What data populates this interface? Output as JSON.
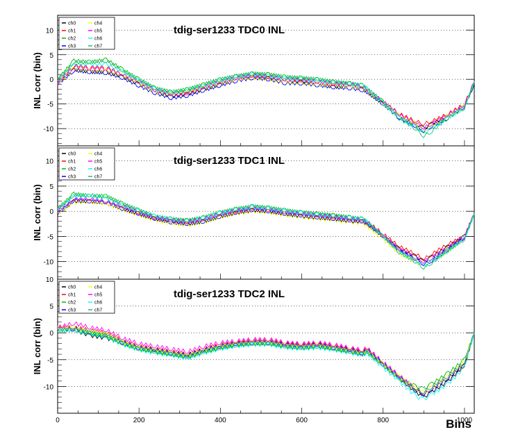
{
  "chart_data": [
    {
      "type": "line",
      "title": "tdig-ser1233 TDC0 INL",
      "ylabel": "INL corr (bin)",
      "xlabel": "",
      "xlim": [
        0,
        1024
      ],
      "ylim": [
        -13.5,
        13
      ],
      "y_ticks": [
        -10,
        -5,
        0,
        5,
        10
      ],
      "x_ticks": [],
      "legend": "top-left",
      "grid": "horizontal dotted",
      "x": [
        0,
        40,
        80,
        120,
        160,
        200,
        240,
        280,
        320,
        360,
        400,
        440,
        480,
        520,
        560,
        600,
        640,
        680,
        720,
        750,
        760,
        800,
        840,
        880,
        900,
        920,
        960,
        1000,
        1024
      ],
      "series": [
        {
          "name": "ch0",
          "color": "#000000",
          "values": [
            -1,
            2.0,
            1.5,
            1.5,
            0.5,
            -1.0,
            -2.5,
            -3.5,
            -3.0,
            -2.0,
            -1.0,
            0.0,
            0.5,
            0.2,
            -0.5,
            -0.5,
            -1.0,
            -1.5,
            -1.5,
            -2.0,
            -2.5,
            -5.0,
            -7.5,
            -9.0,
            -10.0,
            -9.0,
            -7.5,
            -5.5,
            -1.0
          ]
        },
        {
          "name": "ch1",
          "color": "#ff0000",
          "values": [
            -0.5,
            2.8,
            2.5,
            2.5,
            1.0,
            -0.5,
            -2.2,
            -3.0,
            -2.5,
            -1.5,
            -0.5,
            0.3,
            0.9,
            0.6,
            0.0,
            0.0,
            -0.5,
            -1.0,
            -1.0,
            -1.5,
            -2.0,
            -4.5,
            -7.0,
            -8.5,
            -9.0,
            -8.5,
            -7.0,
            -5.0,
            -0.5
          ]
        },
        {
          "name": "ch2",
          "color": "#00bb00",
          "values": [
            0,
            3.8,
            3.5,
            4.0,
            2.0,
            0.0,
            -1.8,
            -2.6,
            -2.0,
            -1.0,
            0.0,
            0.7,
            1.2,
            1.0,
            0.5,
            0.3,
            0.0,
            -0.5,
            -0.8,
            -1.2,
            -1.8,
            -4.5,
            -7.5,
            -9.5,
            -11.0,
            -10.0,
            -7.5,
            -5.5,
            -0.5
          ]
        },
        {
          "name": "ch3",
          "color": "#0000ff",
          "values": [
            -1,
            1.8,
            1.5,
            1.3,
            0.3,
            -1.3,
            -2.8,
            -3.8,
            -3.3,
            -2.2,
            -1.2,
            -0.3,
            0.3,
            0.0,
            -0.8,
            -0.8,
            -1.2,
            -1.6,
            -1.8,
            -2.2,
            -2.6,
            -5.0,
            -7.8,
            -9.5,
            -10.5,
            -9.5,
            -7.8,
            -5.5,
            -1.0
          ]
        },
        {
          "name": "ch4",
          "color": "#ffff00",
          "values": [
            -1,
            2.2,
            1.8,
            1.8,
            0.8,
            -0.8,
            -2.5,
            -3.0,
            -2.6,
            -1.8,
            -0.8,
            0.0,
            0.3,
            0.0,
            -0.5,
            -0.8,
            -1.0,
            -1.2,
            -1.5,
            -1.8,
            -2.3,
            -4.8,
            -7.5,
            -9.0,
            -10.5,
            -9.5,
            -7.5,
            -5.5,
            -0.5
          ]
        },
        {
          "name": "ch5",
          "color": "#ff00ff",
          "values": [
            -0.8,
            2.6,
            2.2,
            2.2,
            1.0,
            -0.5,
            -2.2,
            -3.0,
            -2.8,
            -1.5,
            -0.5,
            0.3,
            0.8,
            0.5,
            0.0,
            -0.2,
            -0.5,
            -0.8,
            -1.0,
            -1.5,
            -2.0,
            -4.5,
            -7.2,
            -8.8,
            -9.8,
            -9.0,
            -7.2,
            -5.2,
            -0.5
          ]
        },
        {
          "name": "ch6",
          "color": "#00ffff",
          "values": [
            -0.5,
            3.0,
            3.0,
            3.0,
            1.5,
            -0.3,
            -2.0,
            -2.8,
            -2.3,
            -1.3,
            -0.3,
            0.5,
            1.0,
            0.7,
            0.2,
            0.0,
            -0.3,
            -0.7,
            -1.0,
            -1.3,
            -1.8,
            -4.8,
            -7.8,
            -9.8,
            -11.0,
            -10.0,
            -7.8,
            -5.8,
            -0.5
          ]
        },
        {
          "name": "ch7",
          "color": "#22bb77",
          "values": [
            0,
            3.5,
            3.5,
            3.8,
            1.8,
            0.0,
            -1.8,
            -2.5,
            -2.0,
            -1.0,
            0.0,
            0.7,
            1.2,
            1.0,
            0.5,
            0.3,
            0.0,
            -0.5,
            -0.8,
            -1.2,
            -1.8,
            -5.0,
            -8.0,
            -10.0,
            -11.5,
            -10.5,
            -7.8,
            -5.8,
            -0.5
          ]
        }
      ]
    },
    {
      "type": "line",
      "title": "tdig-ser1233 TDC1 INL",
      "ylabel": "INL corr (bin)",
      "xlabel": "",
      "xlim": [
        0,
        1024
      ],
      "ylim": [
        -13.5,
        13
      ],
      "y_ticks": [
        -10,
        -5,
        0,
        5,
        10
      ],
      "x_ticks": [],
      "legend": "top-left",
      "grid": "horizontal dotted",
      "x": [
        0,
        40,
        80,
        120,
        160,
        200,
        240,
        280,
        320,
        360,
        400,
        440,
        480,
        520,
        560,
        600,
        640,
        680,
        720,
        750,
        760,
        800,
        840,
        880,
        900,
        920,
        960,
        1000,
        1024
      ],
      "series": [
        {
          "name": "ch0",
          "color": "#000000",
          "values": [
            -0.5,
            2.0,
            2.0,
            1.5,
            0.5,
            -0.5,
            -1.5,
            -2.0,
            -2.5,
            -2.0,
            -1.0,
            -0.3,
            0.2,
            0.0,
            -0.5,
            -1.0,
            -1.3,
            -1.5,
            -2.0,
            -2.0,
            -2.5,
            -5.0,
            -7.5,
            -9.0,
            -10.0,
            -9.0,
            -7.0,
            -5.0,
            -0.5
          ]
        },
        {
          "name": "ch1",
          "color": "#ff0000",
          "values": [
            0,
            2.5,
            2.5,
            2.0,
            1.0,
            -0.2,
            -1.2,
            -1.8,
            -2.0,
            -1.5,
            -0.5,
            0.0,
            0.6,
            0.3,
            -0.2,
            -0.5,
            -0.8,
            -1.0,
            -1.5,
            -1.8,
            -2.0,
            -4.5,
            -7.0,
            -8.5,
            -9.5,
            -8.5,
            -6.5,
            -5.0,
            -0.5
          ]
        },
        {
          "name": "ch2",
          "color": "#00bb00",
          "values": [
            0.5,
            3.5,
            3.0,
            3.0,
            1.5,
            0.2,
            -1.0,
            -1.5,
            -1.8,
            -1.2,
            -0.2,
            0.5,
            1.0,
            0.7,
            0.2,
            -0.2,
            -0.5,
            -0.8,
            -1.2,
            -1.5,
            -2.0,
            -5.0,
            -8.0,
            -10.0,
            -11.0,
            -10.0,
            -7.5,
            -5.5,
            -0.5
          ]
        },
        {
          "name": "ch3",
          "color": "#0000ff",
          "values": [
            -0.5,
            2.2,
            2.0,
            1.8,
            0.5,
            -0.5,
            -1.5,
            -2.2,
            -2.5,
            -2.0,
            -1.0,
            -0.2,
            0.3,
            0.0,
            -0.5,
            -0.8,
            -1.2,
            -1.5,
            -1.8,
            -2.0,
            -2.5,
            -5.0,
            -7.8,
            -9.5,
            -10.5,
            -9.8,
            -7.5,
            -5.2,
            -0.5
          ]
        },
        {
          "name": "ch4",
          "color": "#ffff00",
          "values": [
            -0.5,
            1.8,
            1.8,
            1.5,
            0.3,
            -0.8,
            -1.8,
            -2.5,
            -2.8,
            -2.2,
            -1.2,
            -0.5,
            0.0,
            -0.3,
            -0.8,
            -1.2,
            -1.5,
            -1.8,
            -2.2,
            -2.5,
            -3.0,
            -5.5,
            -8.5,
            -10.0,
            -11.0,
            -10.0,
            -8.0,
            -5.5,
            -0.5
          ]
        },
        {
          "name": "ch5",
          "color": "#ff00ff",
          "values": [
            0,
            2.5,
            2.5,
            2.0,
            1.0,
            -0.3,
            -1.3,
            -1.8,
            -2.2,
            -1.5,
            -0.5,
            0.2,
            0.6,
            0.3,
            -0.2,
            -0.5,
            -0.8,
            -1.2,
            -1.5,
            -1.8,
            -2.2,
            -4.8,
            -7.5,
            -9.2,
            -10.0,
            -9.2,
            -7.2,
            -5.0,
            -0.5
          ]
        },
        {
          "name": "ch6",
          "color": "#00ffff",
          "values": [
            0.2,
            3.0,
            3.0,
            2.5,
            1.2,
            0.0,
            -1.0,
            -1.6,
            -2.0,
            -1.3,
            -0.3,
            0.3,
            0.8,
            0.5,
            0.0,
            -0.3,
            -0.7,
            -1.0,
            -1.3,
            -1.6,
            -2.0,
            -5.0,
            -8.0,
            -9.8,
            -11.0,
            -10.0,
            -7.8,
            -5.5,
            -0.5
          ]
        },
        {
          "name": "ch7",
          "color": "#22bb77",
          "values": [
            0.5,
            3.3,
            3.2,
            3.0,
            1.5,
            0.2,
            -1.0,
            -1.5,
            -1.8,
            -1.2,
            -0.2,
            0.5,
            1.0,
            0.7,
            0.2,
            -0.2,
            -0.5,
            -0.8,
            -1.2,
            -1.5,
            -2.0,
            -5.0,
            -8.2,
            -10.0,
            -11.2,
            -10.2,
            -7.8,
            -5.5,
            -0.5
          ]
        }
      ]
    },
    {
      "type": "line",
      "title": "tdig-ser1233 TDC2 INL",
      "ylabel": "INL corr (bin)",
      "xlabel": "Bins",
      "xlim": [
        0,
        1024
      ],
      "ylim": [
        -15,
        10
      ],
      "y_ticks": [
        -10,
        -5,
        0,
        5,
        10
      ],
      "x_ticks": [
        0,
        200,
        400,
        600,
        800,
        1000
      ],
      "legend": "top-left",
      "grid": "horizontal dotted",
      "x": [
        0,
        40,
        80,
        120,
        160,
        200,
        240,
        280,
        320,
        360,
        400,
        440,
        480,
        520,
        560,
        600,
        640,
        680,
        720,
        750,
        760,
        800,
        840,
        880,
        900,
        920,
        960,
        1000,
        1024
      ],
      "series": [
        {
          "name": "ch0",
          "color": "#000000",
          "values": [
            0.5,
            0.5,
            -0.5,
            -1.0,
            -2.0,
            -3.0,
            -3.5,
            -4.0,
            -4.5,
            -3.5,
            -2.8,
            -2.2,
            -2.0,
            -2.0,
            -2.5,
            -2.8,
            -2.5,
            -3.0,
            -3.5,
            -4.0,
            -3.5,
            -6.0,
            -8.5,
            -11.0,
            -12.0,
            -11.0,
            -9.0,
            -6.0,
            0.0
          ]
        },
        {
          "name": "ch1",
          "color": "#ff0000",
          "values": [
            1.0,
            1.0,
            0.5,
            0.0,
            -1.5,
            -2.5,
            -3.0,
            -3.5,
            -4.0,
            -3.0,
            -2.2,
            -1.8,
            -1.5,
            -1.5,
            -2.0,
            -2.2,
            -2.0,
            -2.5,
            -3.0,
            -3.5,
            -3.0,
            -5.5,
            -8.0,
            -10.5,
            -11.5,
            -10.5,
            -8.5,
            -6.0,
            0.0
          ]
        },
        {
          "name": "ch2",
          "color": "#00bb00",
          "values": [
            0.5,
            0.5,
            0.0,
            -0.5,
            -2.0,
            -3.0,
            -3.5,
            -4.0,
            -4.5,
            -3.5,
            -2.8,
            -2.3,
            -2.0,
            -2.0,
            -2.5,
            -2.8,
            -2.5,
            -3.0,
            -3.5,
            -4.0,
            -3.5,
            -6.0,
            -8.5,
            -10.0,
            -10.5,
            -9.5,
            -7.5,
            -5.0,
            0.0
          ]
        },
        {
          "name": "ch3",
          "color": "#0000ff",
          "values": [
            0.5,
            0.8,
            0.0,
            -0.5,
            -1.8,
            -2.8,
            -3.2,
            -3.8,
            -4.2,
            -3.2,
            -2.5,
            -2.0,
            -1.8,
            -1.8,
            -2.2,
            -2.5,
            -2.2,
            -2.8,
            -3.2,
            -3.8,
            -3.2,
            -5.8,
            -8.2,
            -10.8,
            -11.5,
            -10.5,
            -8.5,
            -5.8,
            0.0
          ]
        },
        {
          "name": "ch4",
          "color": "#ffff00",
          "values": [
            0.8,
            1.0,
            0.3,
            -0.3,
            -1.8,
            -2.8,
            -3.2,
            -3.8,
            -4.2,
            -3.2,
            -2.5,
            -2.0,
            -1.8,
            -1.8,
            -2.2,
            -2.5,
            -2.2,
            -2.8,
            -3.2,
            -3.8,
            -3.2,
            -5.8,
            -8.2,
            -10.5,
            -11.2,
            -10.2,
            -8.2,
            -5.5,
            0.0
          ]
        },
        {
          "name": "ch5",
          "color": "#ff00ff",
          "values": [
            1.0,
            1.8,
            1.0,
            0.5,
            -1.0,
            -2.0,
            -2.5,
            -3.0,
            -3.5,
            -2.5,
            -1.8,
            -1.5,
            -1.2,
            -1.2,
            -1.8,
            -2.0,
            -1.8,
            -2.2,
            -2.8,
            -3.2,
            -2.8,
            -5.5,
            -8.0,
            -10.5,
            -11.0,
            -10.0,
            -8.0,
            -5.5,
            0.0
          ]
        },
        {
          "name": "ch6",
          "color": "#00ffff",
          "values": [
            0.5,
            0.5,
            -0.2,
            -0.8,
            -2.2,
            -3.2,
            -3.8,
            -4.2,
            -4.8,
            -3.8,
            -3.0,
            -2.5,
            -2.2,
            -2.2,
            -2.8,
            -3.0,
            -2.8,
            -3.2,
            -3.8,
            -4.2,
            -3.8,
            -6.5,
            -9.0,
            -11.8,
            -12.5,
            -11.5,
            -9.5,
            -6.5,
            0.0
          ]
        },
        {
          "name": "ch7",
          "color": "#22bb77",
          "values": [
            0.5,
            0.6,
            0.0,
            -0.5,
            -2.0,
            -3.0,
            -3.5,
            -4.0,
            -4.5,
            -3.5,
            -2.8,
            -2.3,
            -2.0,
            -2.0,
            -2.5,
            -2.8,
            -2.5,
            -3.0,
            -3.5,
            -4.0,
            -3.5,
            -6.0,
            -8.5,
            -10.5,
            -11.0,
            -10.0,
            -8.0,
            -5.5,
            0.0
          ]
        }
      ]
    }
  ]
}
